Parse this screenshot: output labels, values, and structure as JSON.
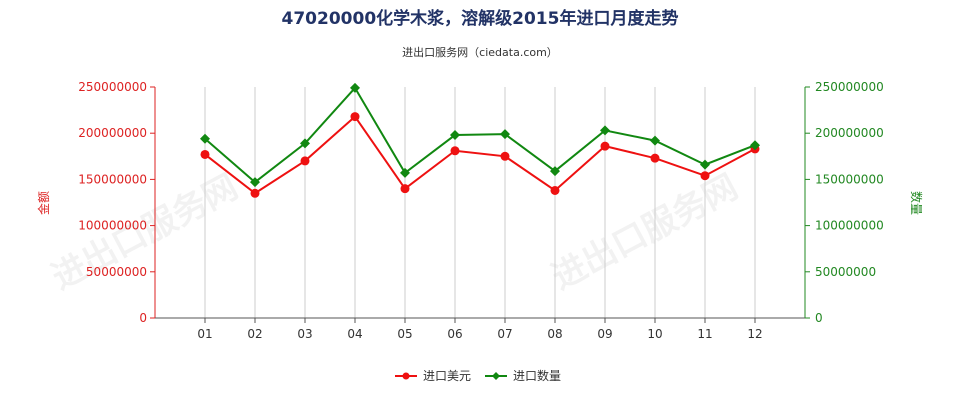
{
  "chart_data": {
    "type": "line",
    "title": "47020000化学木浆，溶解级2015年进口月度走势",
    "subtitle": "进出口服务网（ciedata.com）",
    "watermark": "进出口服务网",
    "categories": [
      "01",
      "02",
      "03",
      "04",
      "05",
      "06",
      "07",
      "08",
      "09",
      "10",
      "11",
      "12"
    ],
    "y_left": {
      "label": "金额",
      "range": [
        0,
        250000000
      ],
      "ticks": [
        "0",
        "50000000",
        "100000000",
        "150000000",
        "200000000",
        "250000000"
      ],
      "color": "#dd2222"
    },
    "y_right": {
      "label": "数量",
      "range": [
        0,
        250000000
      ],
      "ticks": [
        "0",
        "50000000",
        "100000000",
        "150000000",
        "200000000",
        "250000000"
      ],
      "color": "#228822"
    },
    "series": [
      {
        "name": "进口美元",
        "axis": "left",
        "color": "#ee1111",
        "marker": "circle",
        "values": [
          177000000,
          135000000,
          170000000,
          218000000,
          140000000,
          181000000,
          175000000,
          138000000,
          186000000,
          173000000,
          154000000,
          183000000
        ]
      },
      {
        "name": "进口数量",
        "axis": "right",
        "color": "#118811",
        "marker": "diamond",
        "values": [
          194000000,
          147000000,
          189000000,
          249000000,
          157000000,
          198000000,
          199000000,
          159000000,
          203000000,
          192000000,
          166000000,
          187000000
        ]
      }
    ],
    "grid": {
      "vertical": true,
      "horizontal": false
    },
    "legend": {
      "position": "bottom-center"
    }
  }
}
